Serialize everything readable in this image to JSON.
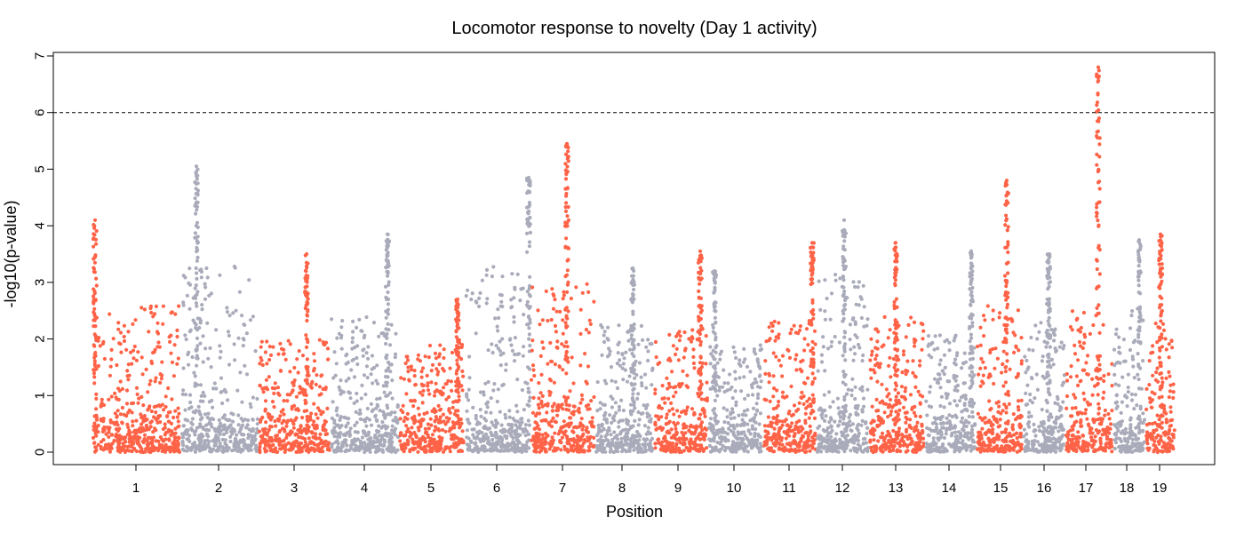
{
  "chart_data": {
    "type": "scatter",
    "subtype": "manhattan",
    "title": "Locomotor response to novelty (Day 1 activity)",
    "xlabel": "Position",
    "ylabel": "-log10(p-value)",
    "ylim": [
      0,
      7
    ],
    "y_ticks": [
      0,
      1,
      2,
      3,
      4,
      5,
      6,
      7
    ],
    "threshold": 6,
    "threshold_style": "dashed",
    "grid": false,
    "legend": "none",
    "colors": {
      "odd": "#FF6347",
      "even": "#A9ABBA",
      "threshold": "#000000"
    },
    "chromosomes": [
      {
        "label": "1",
        "peak": 4.1,
        "typical_max": 2.6
      },
      {
        "label": "2",
        "peak": 5.05,
        "typical_max": 3.3
      },
      {
        "label": "3",
        "peak": 3.5,
        "typical_max": 2.0
      },
      {
        "label": "4",
        "peak": 3.85,
        "typical_max": 2.4
      },
      {
        "label": "5",
        "peak": 2.7,
        "typical_max": 1.9
      },
      {
        "label": "6",
        "peak": 4.85,
        "typical_max": 3.3
      },
      {
        "label": "7",
        "peak": 5.45,
        "typical_max": 3.0
      },
      {
        "label": "8",
        "peak": 3.25,
        "typical_max": 2.3
      },
      {
        "label": "9",
        "peak": 3.55,
        "typical_max": 2.2
      },
      {
        "label": "10",
        "peak": 3.2,
        "typical_max": 1.9
      },
      {
        "label": "11",
        "peak": 3.7,
        "typical_max": 2.4
      },
      {
        "label": "12",
        "peak": 4.1,
        "typical_max": 3.2
      },
      {
        "label": "13",
        "peak": 3.7,
        "typical_max": 2.4
      },
      {
        "label": "14",
        "peak": 3.55,
        "typical_max": 2.1
      },
      {
        "label": "15",
        "peak": 4.8,
        "typical_max": 2.6
      },
      {
        "label": "16",
        "peak": 3.5,
        "typical_max": 2.3
      },
      {
        "label": "17",
        "peak": 6.8,
        "typical_max": 2.5
      },
      {
        "label": "18",
        "peak": 3.75,
        "typical_max": 2.5
      },
      {
        "label": "19",
        "peak": 3.85,
        "typical_max": 2.3
      }
    ]
  }
}
